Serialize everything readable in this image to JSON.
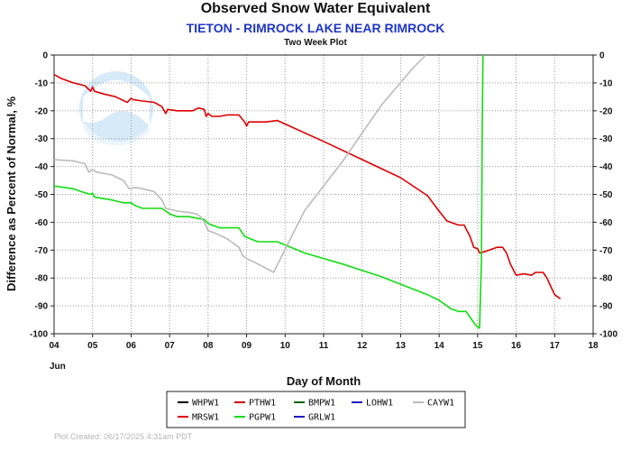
{
  "header": {
    "title": "Observed Snow Water Equivalent",
    "subtitle": "TIETON - RIMROCK LAKE NEAR RIMROCK",
    "subsubtitle": "Two Week Plot"
  },
  "footer": {
    "text": "Plot Created: 06/17/2025 4:31am PDT"
  },
  "chart_data": {
    "type": "line",
    "title": "Observed Snow Water Equivalent",
    "xlabel": "Day of Month",
    "xlabel_sub": "Jun",
    "ylabel": "Difference as Percent of Normal, %",
    "xlim": [
      4,
      18
    ],
    "ylim": [
      -100,
      0
    ],
    "x_ticks": [
      4,
      5,
      6,
      7,
      8,
      9,
      10,
      11,
      12,
      13,
      14,
      15,
      16,
      17,
      18
    ],
    "x_tick_labels": [
      "04",
      "05",
      "06",
      "07",
      "08",
      "09",
      "10",
      "11",
      "12",
      "13",
      "14",
      "15",
      "16",
      "17",
      "18"
    ],
    "y_ticks": [
      0,
      -10,
      -20,
      -30,
      -40,
      -50,
      -60,
      -70,
      -80,
      -90,
      -100
    ],
    "y_tick_labels": [
      "0",
      "-10",
      "-20",
      "-30",
      "-40",
      "-50",
      "-60",
      "-70",
      "-80",
      "-90",
      "-100"
    ],
    "grid": true,
    "legend_position": "bottom-center",
    "legend": [
      {
        "name": "WHPW1",
        "color": "#000000"
      },
      {
        "name": "PTHW1",
        "color": "#cc0000"
      },
      {
        "name": "BMPW1",
        "color": "#006600"
      },
      {
        "name": "LOHW1",
        "color": "#1c1cc8"
      },
      {
        "name": "CAYW1",
        "color": "#bbbbbb"
      },
      {
        "name": "MRSW1",
        "color": "#dd0000"
      },
      {
        "name": "PGPW1",
        "color": "#11dd11"
      },
      {
        "name": "GRLW1",
        "color": "#1c1cc8"
      }
    ],
    "series": [
      {
        "name": "MRSW1",
        "color": "#dd0000",
        "points": [
          [
            4.0,
            -7
          ],
          [
            4.2,
            -8.5
          ],
          [
            4.5,
            -10
          ],
          [
            4.8,
            -11
          ],
          [
            4.95,
            -13
          ],
          [
            5.0,
            -11.5
          ],
          [
            5.05,
            -13
          ],
          [
            5.3,
            -14
          ],
          [
            5.6,
            -15
          ],
          [
            5.9,
            -17
          ],
          [
            6.0,
            -15.5
          ],
          [
            6.05,
            -16
          ],
          [
            6.3,
            -16.5
          ],
          [
            6.6,
            -17
          ],
          [
            6.8,
            -18.5
          ],
          [
            6.9,
            -21
          ],
          [
            6.95,
            -19.5
          ],
          [
            7.2,
            -20
          ],
          [
            7.6,
            -20
          ],
          [
            7.75,
            -19
          ],
          [
            7.9,
            -19.5
          ],
          [
            7.95,
            -22
          ],
          [
            8.0,
            -21
          ],
          [
            8.1,
            -22
          ],
          [
            8.3,
            -22
          ],
          [
            8.5,
            -21.5
          ],
          [
            8.8,
            -21.5
          ],
          [
            8.95,
            -24
          ],
          [
            9.0,
            -25.5
          ],
          [
            9.05,
            -24
          ],
          [
            9.5,
            -24
          ],
          [
            9.8,
            -23.5
          ],
          [
            11.0,
            -31
          ],
          [
            12.0,
            -37.5
          ],
          [
            13.0,
            -44
          ],
          [
            13.7,
            -50.5
          ],
          [
            14.0,
            -56
          ],
          [
            14.2,
            -59.5
          ],
          [
            14.5,
            -61
          ],
          [
            14.65,
            -61
          ],
          [
            14.8,
            -65
          ],
          [
            14.9,
            -69
          ],
          [
            15.0,
            -69.5
          ],
          [
            15.05,
            -71
          ],
          [
            15.2,
            -70.5
          ],
          [
            15.3,
            -70
          ],
          [
            15.5,
            -69
          ],
          [
            15.65,
            -69
          ],
          [
            15.75,
            -71
          ],
          [
            15.85,
            -75
          ],
          [
            16.0,
            -79
          ],
          [
            16.2,
            -78.5
          ],
          [
            16.4,
            -79
          ],
          [
            16.5,
            -78
          ],
          [
            16.7,
            -78
          ],
          [
            16.8,
            -80
          ],
          [
            16.9,
            -83
          ],
          [
            17.0,
            -86
          ],
          [
            17.1,
            -87
          ],
          [
            17.15,
            -87.5
          ]
        ]
      },
      {
        "name": "PGPW1",
        "color": "#11dd11",
        "points": [
          [
            4.0,
            -47
          ],
          [
            4.5,
            -48
          ],
          [
            4.7,
            -49
          ],
          [
            4.95,
            -50
          ],
          [
            5.0,
            -49.5
          ],
          [
            5.05,
            -51
          ],
          [
            5.5,
            -52
          ],
          [
            5.8,
            -53
          ],
          [
            6.0,
            -53
          ],
          [
            6.1,
            -54
          ],
          [
            6.3,
            -55
          ],
          [
            6.6,
            -55
          ],
          [
            6.8,
            -55
          ],
          [
            6.9,
            -56
          ],
          [
            7.0,
            -57
          ],
          [
            7.2,
            -58
          ],
          [
            7.5,
            -58
          ],
          [
            7.7,
            -58.5
          ],
          [
            7.9,
            -59
          ],
          [
            8.0,
            -60.5
          ],
          [
            8.2,
            -61.5
          ],
          [
            8.3,
            -62
          ],
          [
            8.5,
            -62
          ],
          [
            8.8,
            -62
          ],
          [
            8.95,
            -65
          ],
          [
            9.1,
            -66
          ],
          [
            9.3,
            -67
          ],
          [
            9.8,
            -67
          ],
          [
            10.5,
            -71
          ],
          [
            11.5,
            -75
          ],
          [
            12.5,
            -79.5
          ],
          [
            13.7,
            -86
          ],
          [
            14.0,
            -88
          ],
          [
            14.3,
            -91
          ],
          [
            14.5,
            -92
          ],
          [
            14.7,
            -92
          ],
          [
            14.8,
            -94
          ],
          [
            14.95,
            -97
          ],
          [
            15.05,
            -98
          ],
          [
            15.1,
            -74
          ],
          [
            15.12,
            -25
          ],
          [
            15.14,
            0
          ]
        ]
      },
      {
        "name": "CAYW1",
        "color": "#bbbbbb",
        "points": [
          [
            4.0,
            -37.5
          ],
          [
            4.5,
            -38
          ],
          [
            4.8,
            -39
          ],
          [
            4.9,
            -42
          ],
          [
            5.0,
            -41
          ],
          [
            5.1,
            -42
          ],
          [
            5.5,
            -43
          ],
          [
            5.8,
            -45
          ],
          [
            5.95,
            -48
          ],
          [
            6.1,
            -47.5
          ],
          [
            6.3,
            -48
          ],
          [
            6.6,
            -49
          ],
          [
            6.8,
            -52
          ],
          [
            6.9,
            -55
          ],
          [
            7.2,
            -56
          ],
          [
            7.5,
            -56.5
          ],
          [
            7.7,
            -57
          ],
          [
            7.8,
            -58
          ],
          [
            7.9,
            -60
          ],
          [
            8.0,
            -63
          ],
          [
            8.2,
            -64
          ],
          [
            8.5,
            -66
          ],
          [
            8.8,
            -69
          ],
          [
            8.9,
            -72
          ],
          [
            9.0,
            -73
          ],
          [
            9.3,
            -75
          ],
          [
            9.7,
            -78
          ],
          [
            10.5,
            -56
          ],
          [
            11.5,
            -38
          ],
          [
            12.5,
            -18
          ],
          [
            13.3,
            -5
          ],
          [
            13.65,
            0
          ]
        ]
      }
    ]
  }
}
